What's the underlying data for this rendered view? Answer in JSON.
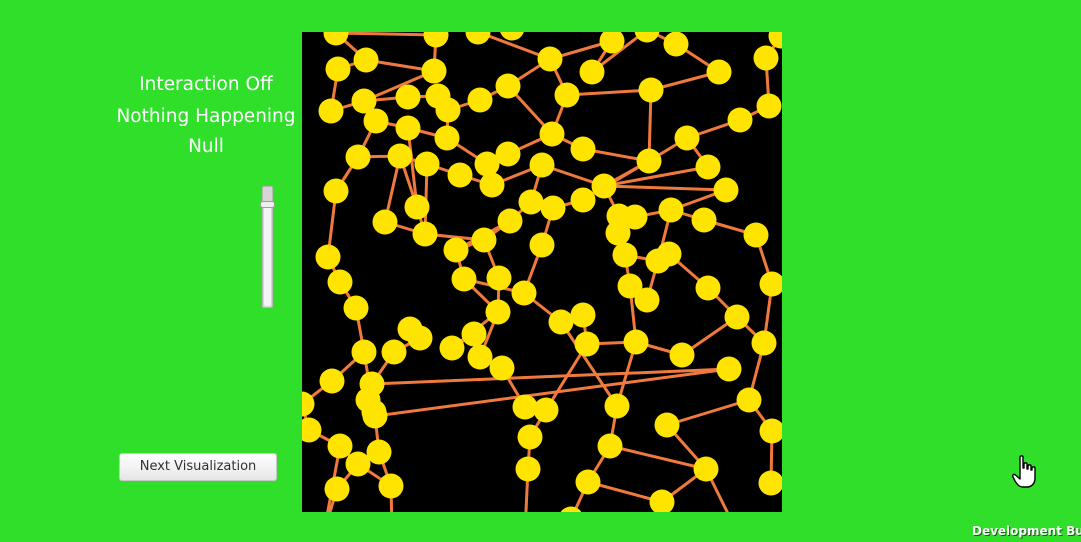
{
  "status": {
    "interaction": "Interaction Off",
    "happening": "Nothing Happening",
    "value": "Null"
  },
  "slider": {
    "level": 0.87
  },
  "button": {
    "label": "Next Visualization"
  },
  "footer": {
    "build": "Development Build"
  },
  "graph": {
    "node_color": "#ffe400",
    "edge_color": "#f07a3e",
    "background": "#000000"
  },
  "icons": [
    "hand-cursor-icon"
  ]
}
